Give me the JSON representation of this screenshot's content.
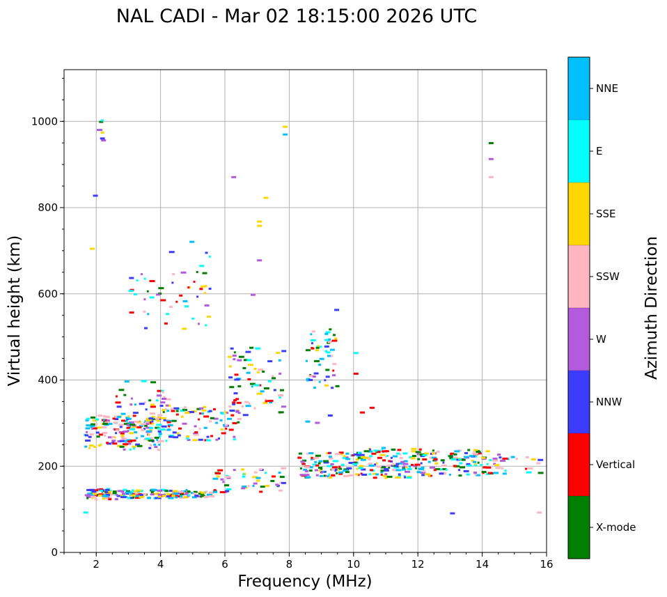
{
  "chart_data": {
    "type": "scatter",
    "title": "NAL CADI - Mar 02 18:15:00 2026 UTC",
    "xlabel": "Frequency (MHz)",
    "ylabel": "Virtual height (km)",
    "xlim": [
      1,
      16
    ],
    "ylim": [
      0,
      1120
    ],
    "xticks": [
      2,
      4,
      6,
      8,
      10,
      12,
      14,
      16
    ],
    "yticks": [
      0,
      200,
      400,
      600,
      800,
      1000
    ],
    "grid": true,
    "colorbar": {
      "label": "Azimuth Direction",
      "categories": [
        {
          "name": "X-mode",
          "color": "#008000"
        },
        {
          "name": "Vertical",
          "color": "#ff0000"
        },
        {
          "name": "NNW",
          "color": "#3c3cff"
        },
        {
          "name": "W",
          "color": "#b45adc"
        },
        {
          "name": "SSW",
          "color": "#ffb6c1"
        },
        {
          "name": "SSE",
          "color": "#ffd700"
        },
        {
          "name": "E",
          "color": "#00ffff"
        },
        {
          "name": "NNE",
          "color": "#00bfff"
        }
      ]
    },
    "clusters": [
      {
        "x": [
          1.6,
          2.6
        ],
        "y": [
          125,
          150
        ],
        "n": 60
      },
      {
        "x": [
          2.6,
          4.8
        ],
        "y": [
          128,
          148
        ],
        "n": 110
      },
      {
        "x": [
          4.8,
          5.6
        ],
        "y": [
          130,
          145
        ],
        "n": 25
      },
      {
        "x": [
          5.6,
          7.8
        ],
        "y": [
          140,
          200
        ],
        "n": 50
      },
      {
        "x": [
          8.2,
          9.8
        ],
        "y": [
          175,
          235
        ],
        "n": 90
      },
      {
        "x": [
          9.8,
          12.2
        ],
        "y": [
          175,
          245
        ],
        "n": 150
      },
      {
        "x": [
          12.2,
          14.2
        ],
        "y": [
          180,
          240
        ],
        "n": 90
      },
      {
        "x": [
          14.2,
          15.8
        ],
        "y": [
          180,
          230
        ],
        "n": 25
      },
      {
        "x": [
          1.6,
          4.0
        ],
        "y": [
          240,
          320
        ],
        "n": 160
      },
      {
        "x": [
          4.0,
          6.5
        ],
        "y": [
          260,
          340
        ],
        "n": 90
      },
      {
        "x": [
          2.5,
          4.2
        ],
        "y": [
          280,
          400
        ],
        "n": 60
      },
      {
        "x": [
          6.0,
          7.8
        ],
        "y": [
          320,
          480
        ],
        "n": 70
      },
      {
        "x": [
          8.5,
          9.5
        ],
        "y": [
          380,
          520
        ],
        "n": 50
      },
      {
        "x": [
          3.0,
          5.5
        ],
        "y": [
          520,
          700
        ],
        "n": 50
      },
      {
        "x": [
          2.0,
          2.2
        ],
        "y": [
          940,
          1015
        ],
        "n": 6
      }
    ],
    "sparse_points": [
      {
        "x": 7.0,
        "y": 770,
        "c": "SSE"
      },
      {
        "x": 7.0,
        "y": 760,
        "c": "SSE"
      },
      {
        "x": 7.2,
        "y": 825,
        "c": "SSE"
      },
      {
        "x": 7.8,
        "y": 990,
        "c": "SSE"
      },
      {
        "x": 7.8,
        "y": 972,
        "c": "NNE"
      },
      {
        "x": 6.2,
        "y": 873,
        "c": "W"
      },
      {
        "x": 7.0,
        "y": 680,
        "c": "W"
      },
      {
        "x": 6.8,
        "y": 600,
        "c": "W"
      },
      {
        "x": 14.2,
        "y": 952,
        "c": "X-mode"
      },
      {
        "x": 14.2,
        "y": 915,
        "c": "W"
      },
      {
        "x": 14.2,
        "y": 873,
        "c": "SSW"
      },
      {
        "x": 1.9,
        "y": 830,
        "c": "NNW"
      },
      {
        "x": 1.8,
        "y": 707,
        "c": "SSE"
      },
      {
        "x": 4.9,
        "y": 723,
        "c": "NNE"
      },
      {
        "x": 10.0,
        "y": 465,
        "c": "E"
      },
      {
        "x": 10.0,
        "y": 417,
        "c": "Vertical"
      },
      {
        "x": 10.5,
        "y": 338,
        "c": "Vertical"
      },
      {
        "x": 10.2,
        "y": 327,
        "c": "Vertical"
      },
      {
        "x": 9.4,
        "y": 565,
        "c": "NNW"
      },
      {
        "x": 13.0,
        "y": 93,
        "c": "NNW"
      },
      {
        "x": 15.7,
        "y": 95,
        "c": "SSW"
      },
      {
        "x": 1.6,
        "y": 95,
        "c": "E"
      },
      {
        "x": 8.5,
        "y": 306,
        "c": "NNE"
      },
      {
        "x": 8.8,
        "y": 303,
        "c": "W"
      },
      {
        "x": 9.2,
        "y": 320,
        "c": "NNW"
      }
    ]
  }
}
